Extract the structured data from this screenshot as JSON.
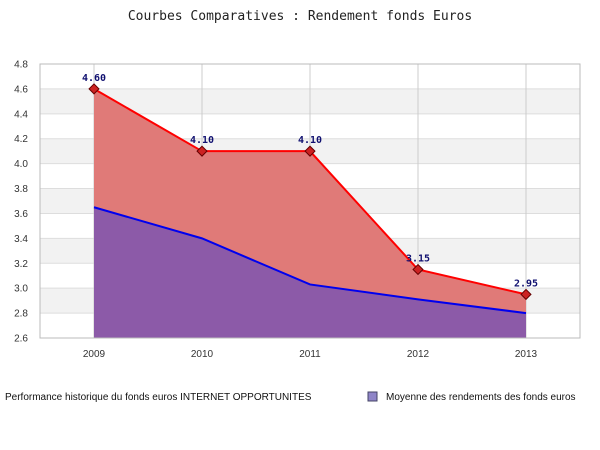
{
  "chart_data": {
    "type": "area",
    "title": "Courbes Comparatives : Rendement fonds Euros",
    "categories": [
      "2009",
      "2010",
      "2011",
      "2012",
      "2013"
    ],
    "ylim": [
      2.6,
      4.8
    ],
    "yticks": [
      "2.6",
      "2.8",
      "3.0",
      "3.2",
      "3.4",
      "3.6",
      "3.8",
      "4.0",
      "4.2",
      "4.4",
      "4.6",
      "4.8"
    ],
    "grid": true,
    "legend_position": "bottom",
    "series": [
      {
        "name": "Performance historique du fonds euros INTERNET OPPORTUNITES",
        "values": [
          4.6,
          4.1,
          4.1,
          3.15,
          2.95
        ],
        "labels": [
          "4.60",
          "4.10",
          "4.10",
          "3.15",
          "2.95"
        ],
        "fill_color": "#e07a78",
        "line_color": "#ff0000",
        "marker_color": "#cc2222"
      },
      {
        "name": "Moyenne des rendements des fonds euros",
        "values": [
          3.65,
          3.4,
          3.03,
          2.91,
          2.8
        ],
        "fill_color": "#8c5aa8",
        "line_color": "#0000ee"
      }
    ]
  }
}
